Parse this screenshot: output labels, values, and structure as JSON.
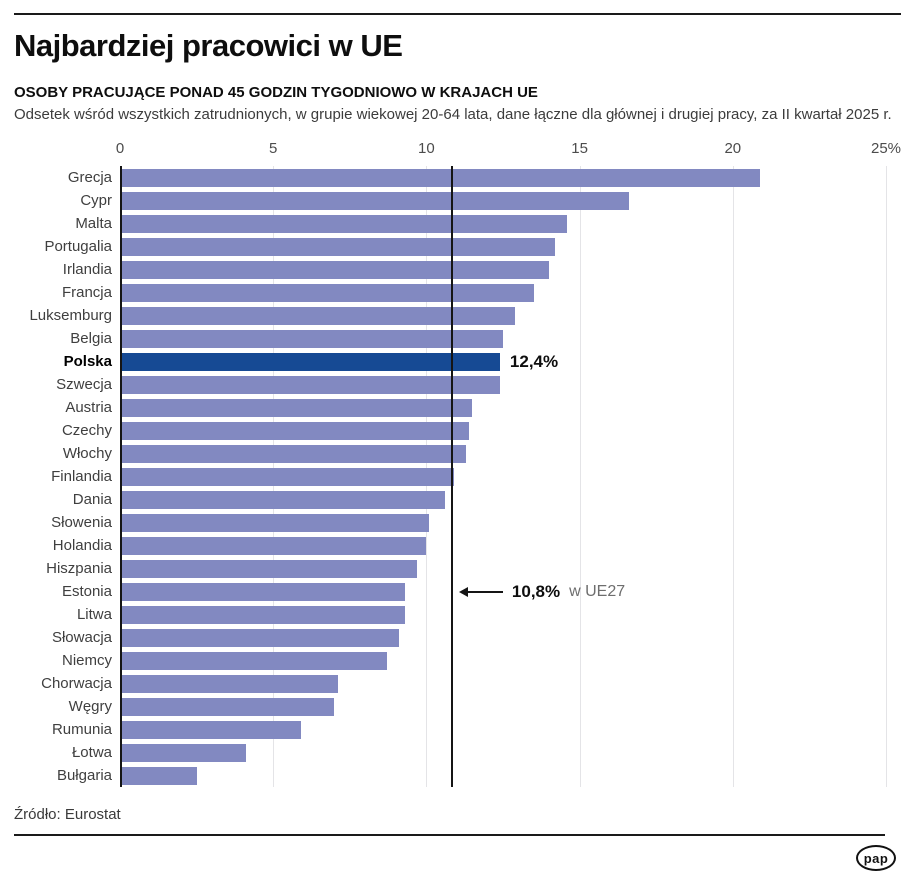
{
  "header": {
    "title": "Najbardziej pracowici w UE",
    "subtitle": "OSOBY PRACUJĄCE PONAD 45 GODZIN TYGODNIOWO W KRAJACH UE",
    "description": "Odsetek wśród wszystkich zatrudnionych, w grupie wiekowej 20-64 lata, dane łączne dla głównej i drugiej pracy, za II kwartał 2025 r."
  },
  "chart_data": {
    "type": "bar",
    "orientation": "horizontal",
    "title": "Najbardziej pracowici w UE",
    "xlabel": "",
    "ylabel": "",
    "unit": "%",
    "xlim": [
      0,
      25
    ],
    "tick_values": [
      0,
      5,
      10,
      15,
      20,
      25
    ],
    "tick_labels": [
      "0",
      "5",
      "10",
      "15",
      "20",
      "25%"
    ],
    "grid": "vertical-gridlines-every-5",
    "categories": [
      "Grecja",
      "Cypr",
      "Malta",
      "Portugalia",
      "Irlandia",
      "Francja",
      "Luksemburg",
      "Belgia",
      "Polska",
      "Szwecja",
      "Austria",
      "Czechy",
      "Włochy",
      "Finlandia",
      "Dania",
      "Słowenia",
      "Holandia",
      "Hiszpania",
      "Estonia",
      "Litwa",
      "Słowacja",
      "Niemcy",
      "Chorwacja",
      "Węgry",
      "Rumunia",
      "Łotwa",
      "Bułgaria"
    ],
    "values": [
      20.9,
      16.6,
      14.6,
      14.2,
      14.0,
      13.5,
      12.9,
      12.5,
      12.4,
      12.4,
      11.5,
      11.4,
      11.3,
      10.9,
      10.6,
      10.1,
      10.0,
      9.7,
      9.3,
      9.3,
      9.1,
      8.7,
      7.1,
      7.0,
      5.9,
      4.1,
      2.5
    ],
    "bar_color": "#8289c1",
    "highlight": {
      "category": "Polska",
      "index": 8,
      "color": "#164a94",
      "value_label": "12,4%"
    },
    "reference_line": {
      "value": 10.8,
      "color": "#151515",
      "label_value": "10,8%",
      "label_suffix": "w UE27",
      "anchor_row": 18
    }
  },
  "footer": {
    "source": "Źródło: Eurostat",
    "logo_text": "pap"
  }
}
